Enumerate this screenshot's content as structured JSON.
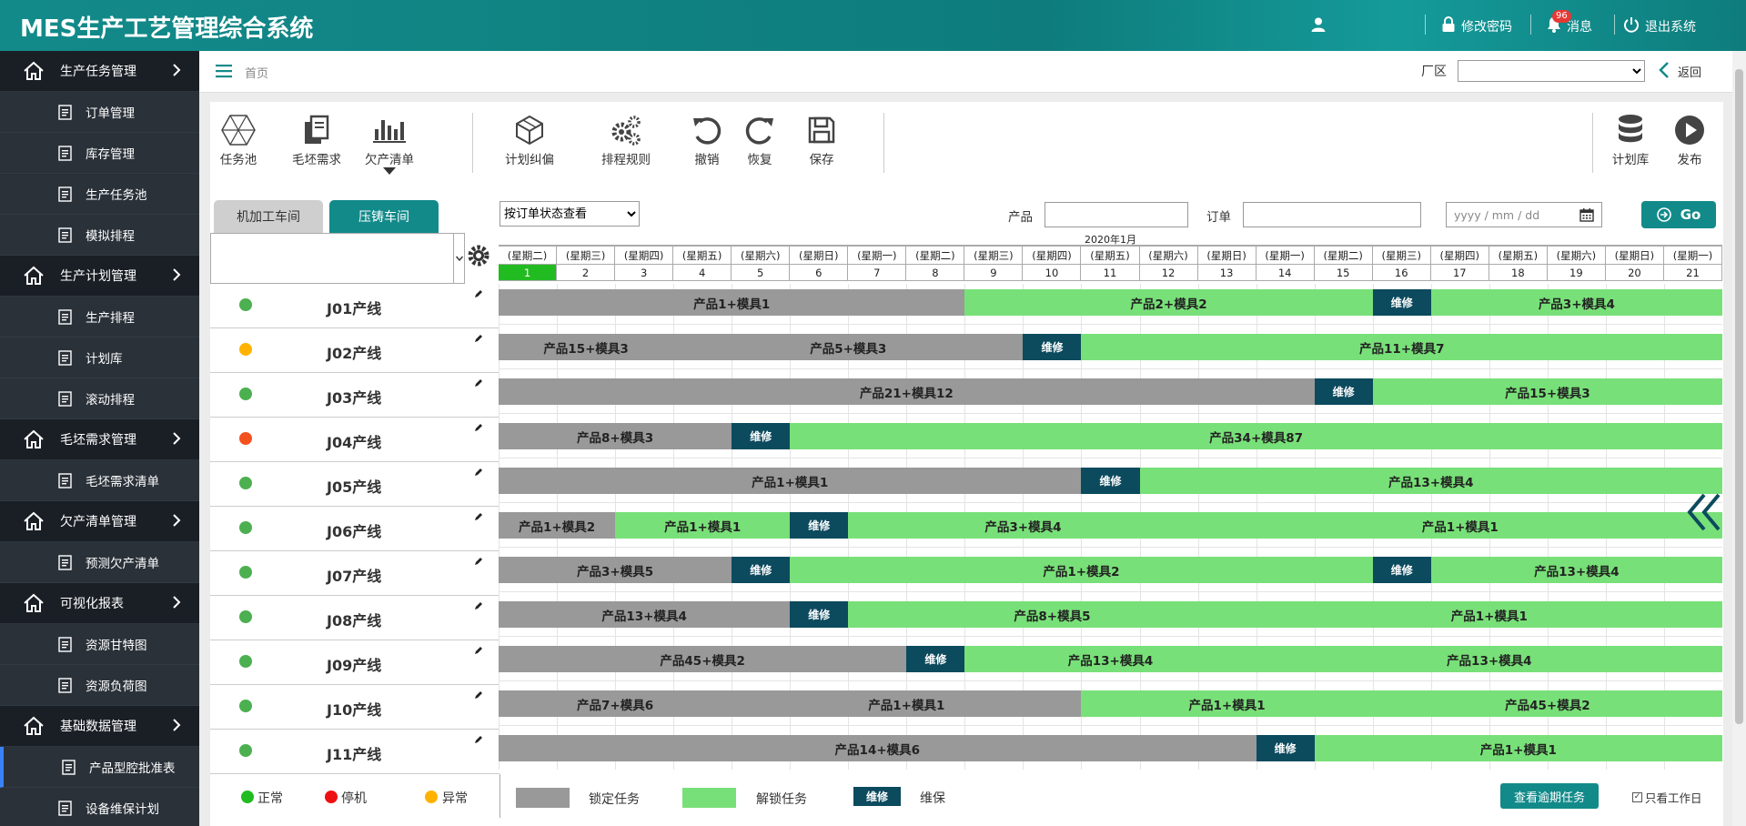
{
  "app": {
    "title": "MES生产工艺管理综合系统"
  },
  "topbar": {
    "change_password": "修改密码",
    "messages": "消息",
    "message_count": "96",
    "logout": "退出系统"
  },
  "sidebar": {
    "groups": [
      {
        "label": "生产任务管理",
        "items": [
          "订单管理",
          "库存管理",
          "生产任务池",
          "模拟排程"
        ]
      },
      {
        "label": "生产计划管理",
        "items": [
          "生产排程",
          "计划库",
          "滚动排程"
        ]
      },
      {
        "label": "毛坯需求管理",
        "items": [
          "毛坯需求清单"
        ]
      },
      {
        "label": "欠产清单管理",
        "items": [
          "预测欠产清单"
        ]
      },
      {
        "label": "可视化报表",
        "items": [
          "资源甘特图",
          "资源负荷图"
        ]
      },
      {
        "label": "基础数据管理",
        "items": [
          "产品型腔批准表",
          "设备维保计划"
        ]
      }
    ]
  },
  "subbar": {
    "breadcrumb": "首页",
    "factory_label": "厂区",
    "factory_value": "",
    "back": "返回"
  },
  "toolbar": {
    "task_pool": "任务池",
    "blank_demand": "毛坯需求",
    "shortage_list": "欠产清单",
    "plan_correction": "计划纠偏",
    "schedule_rules": "排程规则",
    "undo": "撤销",
    "redo": "恢复",
    "save": "保存",
    "plan_library": "计划库",
    "publish": "发布"
  },
  "tabs": [
    {
      "label": "机加工车间",
      "active": false
    },
    {
      "label": "压铸车间",
      "active": true
    }
  ],
  "filters": {
    "view_mode": "按订单状态查看",
    "product_label": "产品",
    "product_value": "",
    "order_label": "订单",
    "order_value": "",
    "date_placeholder": "yyyy / mm / dd",
    "go": "Go"
  },
  "calendar": {
    "month": "2020年1月",
    "weekdays": [
      "(星期二)",
      "(星期三)",
      "(星期四)",
      "(星期五)",
      "(星期六)",
      "(星期日)",
      "(星期一)",
      "(星期二)",
      "(星期三)",
      "(星期四)",
      "(星期五)",
      "(星期六)",
      "(星期日)",
      "(星期一)",
      "(星期二)",
      "(星期三)",
      "(星期四)",
      "(星期五)",
      "(星期六)",
      "(星期日)",
      "(星期一)"
    ],
    "days": [
      "1",
      "2",
      "3",
      "4",
      "5",
      "6",
      "7",
      "8",
      "9",
      "10",
      "11",
      "12",
      "13",
      "14",
      "15",
      "16",
      "17",
      "18",
      "19",
      "20",
      "21"
    ],
    "today_index": 0
  },
  "colors": {
    "normal": "#4caf50",
    "warning": "#ffb300",
    "stopped": "#f4511e",
    "locked": "#999999",
    "unlocked": "#78e078",
    "maintenance": "#0c4a5e",
    "accent": "#138a8a"
  },
  "lines": [
    {
      "name": "J01产线",
      "status": "normal",
      "tasks": [
        {
          "label": "产品1+模具1",
          "type": "lock",
          "start": 0,
          "days": 8
        },
        {
          "label": "产品2+模具2",
          "type": "unlock",
          "start": 8,
          "days": 7
        },
        {
          "label": "维修",
          "type": "maint",
          "start": 15,
          "days": 1
        },
        {
          "label": "产品3+模具4",
          "type": "unlock",
          "start": 16,
          "days": 5
        }
      ]
    },
    {
      "name": "J02产线",
      "status": "warning",
      "tasks": [
        {
          "label": "产品15+模具3",
          "type": "lock",
          "start": 0,
          "days": 3
        },
        {
          "label": "产品5+模具3",
          "type": "lock",
          "start": 3,
          "days": 6
        },
        {
          "label": "维修",
          "type": "maint",
          "start": 9,
          "days": 1
        },
        {
          "label": "产品11+模具7",
          "type": "unlock",
          "start": 10,
          "days": 11
        }
      ]
    },
    {
      "name": "J03产线",
      "status": "normal",
      "tasks": [
        {
          "label": "产品21+模具12",
          "type": "lock",
          "start": 0,
          "days": 14
        },
        {
          "label": "维修",
          "type": "maint",
          "start": 14,
          "days": 1
        },
        {
          "label": "产品15+模具3",
          "type": "unlock",
          "start": 15,
          "days": 6
        }
      ]
    },
    {
      "name": "J04产线",
      "status": "stopped",
      "tasks": [
        {
          "label": "产品8+模具3",
          "type": "lock",
          "start": 0,
          "days": 4
        },
        {
          "label": "维修",
          "type": "maint",
          "start": 4,
          "days": 1
        },
        {
          "label": "产品34+模具87",
          "type": "unlock",
          "start": 5,
          "days": 16
        }
      ]
    },
    {
      "name": "J05产线",
      "status": "normal",
      "tasks": [
        {
          "label": "产品1+模具1",
          "type": "lock",
          "start": 0,
          "days": 10
        },
        {
          "label": "维修",
          "type": "maint",
          "start": 10,
          "days": 1
        },
        {
          "label": "产品13+模具4",
          "type": "unlock",
          "start": 11,
          "days": 10
        }
      ]
    },
    {
      "name": "J06产线",
      "status": "normal",
      "tasks": [
        {
          "label": "产品1+模具2",
          "type": "lock",
          "start": 0,
          "days": 2
        },
        {
          "label": "产品1+模具1",
          "type": "unlock",
          "start": 2,
          "days": 3
        },
        {
          "label": "维修",
          "type": "maint",
          "start": 5,
          "days": 1
        },
        {
          "label": "产品3+模具4",
          "type": "unlock",
          "start": 6,
          "days": 6
        },
        {
          "label": "产品1+模具1",
          "type": "unlock",
          "start": 12,
          "days": 9
        }
      ]
    },
    {
      "name": "J07产线",
      "status": "normal",
      "tasks": [
        {
          "label": "产品3+模具5",
          "type": "lock",
          "start": 0,
          "days": 4
        },
        {
          "label": "维修",
          "type": "maint",
          "start": 4,
          "days": 1
        },
        {
          "label": "产品1+模具2",
          "type": "unlock",
          "start": 5,
          "days": 10
        },
        {
          "label": "维修",
          "type": "maint",
          "start": 15,
          "days": 1
        },
        {
          "label": "产品13+模具4",
          "type": "unlock",
          "start": 16,
          "days": 5
        }
      ]
    },
    {
      "name": "J08产线",
      "status": "normal",
      "tasks": [
        {
          "label": "产品13+模具4",
          "type": "lock",
          "start": 0,
          "days": 5
        },
        {
          "label": "维修",
          "type": "maint",
          "start": 5,
          "days": 1
        },
        {
          "label": "产品8+模具5",
          "type": "unlock",
          "start": 6,
          "days": 7
        },
        {
          "label": "产品1+模具1",
          "type": "unlock",
          "start": 13,
          "days": 8
        }
      ]
    },
    {
      "name": "J09产线",
      "status": "normal",
      "tasks": [
        {
          "label": "产品45+模具2",
          "type": "lock",
          "start": 0,
          "days": 7
        },
        {
          "label": "维修",
          "type": "maint",
          "start": 7,
          "days": 1
        },
        {
          "label": "产品13+模具4",
          "type": "unlock",
          "start": 8,
          "days": 5
        },
        {
          "label": "产品13+模具4",
          "type": "unlock",
          "start": 13,
          "days": 8
        }
      ]
    },
    {
      "name": "J10产线",
      "status": "normal",
      "tasks": [
        {
          "label": "产品7+模具6",
          "type": "lock",
          "start": 0,
          "days": 4
        },
        {
          "label": "产品1+模具1",
          "type": "lock",
          "start": 4,
          "days": 6
        },
        {
          "label": "产品1+模具1",
          "type": "unlock",
          "start": 10,
          "days": 5
        },
        {
          "label": "产品45+模具2",
          "type": "unlock",
          "start": 15,
          "days": 6
        }
      ]
    },
    {
      "name": "J11产线",
      "status": "normal",
      "tasks": [
        {
          "label": "产品14+模具6",
          "type": "lock",
          "start": 0,
          "days": 13
        },
        {
          "label": "维修",
          "type": "maint",
          "start": 13,
          "days": 1
        },
        {
          "label": "产品1+模具1",
          "type": "unlock",
          "start": 14,
          "days": 7
        }
      ]
    }
  ],
  "legend": {
    "normal": "正常",
    "stopped": "停机",
    "warning": "异常",
    "locked": "锁定任务",
    "unlocked": "解锁任务",
    "maint_box": "维修",
    "maint": "维保"
  },
  "footer": {
    "overdue_button": "查看逾期任务",
    "workday_only": "只看工作日"
  }
}
